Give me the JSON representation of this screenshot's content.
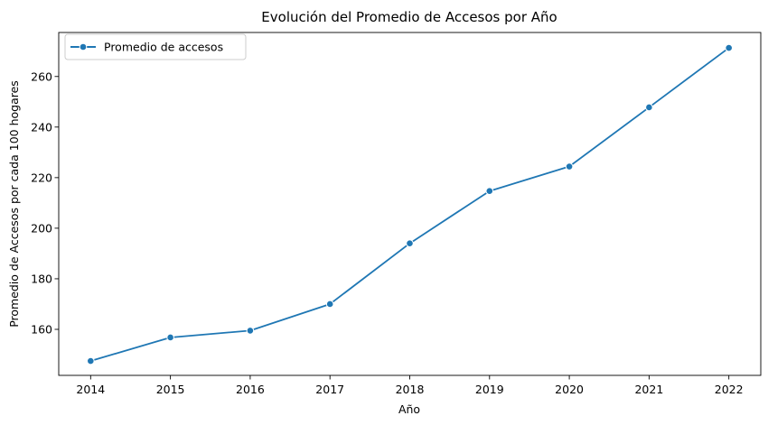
{
  "chart_data": {
    "type": "line",
    "title": "Evolución del Promedio de Accesos por Año",
    "xlabel": "Año",
    "ylabel": "Promedio de Accesos por cada 100 hogares",
    "x": [
      2014,
      2015,
      2016,
      2017,
      2018,
      2019,
      2020,
      2021,
      2022
    ],
    "xlim": [
      2013.6,
      2022.4
    ],
    "ylim": [
      141.8,
      277.4
    ],
    "yticks": [
      160,
      180,
      200,
      220,
      240,
      260
    ],
    "series": [
      {
        "name": "Promedio de accesos",
        "color": "#1f77b4",
        "marker": "circle",
        "values": [
          147.5,
          156.8,
          159.5,
          170.0,
          194.0,
          214.7,
          224.4,
          247.8,
          271.3
        ]
      }
    ],
    "grid": false,
    "legend": "top-left"
  }
}
